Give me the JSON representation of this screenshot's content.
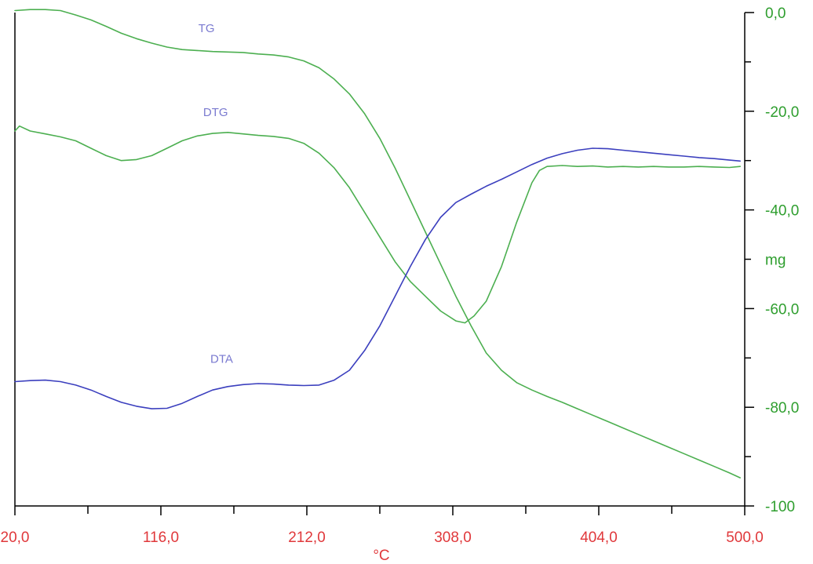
{
  "chart_data": {
    "type": "line",
    "xlabel": "°C",
    "ylabel": "mg",
    "xlim": [
      20,
      500
    ],
    "ylim": [
      -100,
      0
    ],
    "x_tick_labels": [
      "20,0",
      "116,0",
      "212,0",
      "308,0",
      "404,0",
      "500,0"
    ],
    "y_tick_labels": [
      "0,0",
      "-20,0",
      "-40,0",
      "-60,0",
      "-80,0",
      "-100"
    ],
    "grid": false,
    "legend": "none",
    "series": [
      {
        "name": "TG",
        "color": "#4caf50",
        "x": [
          20,
          30,
          40,
          50,
          60,
          70,
          80,
          90,
          100,
          110,
          120,
          130,
          140,
          150,
          160,
          170,
          180,
          190,
          200,
          210,
          220,
          230,
          240,
          250,
          260,
          270,
          280,
          290,
          300,
          310,
          320,
          330,
          340,
          350,
          360,
          370,
          380,
          390,
          400,
          410,
          420,
          430,
          440,
          450,
          460,
          470,
          480,
          490,
          497
        ],
        "y": [
          0.4,
          0.6,
          0.6,
          0.4,
          -0.5,
          -1.5,
          -2.8,
          -4.2,
          -5.3,
          -6.2,
          -7,
          -7.5,
          -7.7,
          -7.9,
          -8,
          -8.1,
          -8.4,
          -8.6,
          -9,
          -9.8,
          -11.2,
          -13.5,
          -16.5,
          -20.5,
          -25.5,
          -31.5,
          -38,
          -44.5,
          -51,
          -57.5,
          -63.5,
          -69,
          -72.5,
          -75,
          -76.5,
          -77.8,
          -79,
          -80.3,
          -81.6,
          -82.9,
          -84.2,
          -85.5,
          -86.8,
          -88.1,
          -89.4,
          -90.7,
          -92,
          -93.3,
          -94.3
        ]
      },
      {
        "name": "DTG",
        "color": "#4caf50",
        "x": [
          20,
          23,
          30,
          40,
          50,
          60,
          70,
          80,
          90,
          100,
          110,
          120,
          130,
          140,
          150,
          160,
          170,
          180,
          190,
          200,
          210,
          220,
          230,
          240,
          250,
          260,
          270,
          280,
          290,
          300,
          310,
          316,
          322,
          330,
          340,
          350,
          360,
          365,
          370,
          380,
          390,
          400,
          410,
          420,
          430,
          440,
          450,
          460,
          470,
          480,
          490,
          497
        ],
        "y": [
          -24,
          -23,
          -24,
          -24.6,
          -25.2,
          -26,
          -27.5,
          -29,
          -30,
          -29.8,
          -29,
          -27.5,
          -26,
          -25,
          -24.5,
          -24.3,
          -24.6,
          -24.9,
          -25.1,
          -25.5,
          -26.5,
          -28.5,
          -31.5,
          -35.5,
          -40.5,
          -45.5,
          -50.5,
          -54.5,
          -57.5,
          -60.5,
          -62.5,
          -62.9,
          -61.5,
          -58.5,
          -51.5,
          -42.5,
          -34.5,
          -32,
          -31.2,
          -31,
          -31.2,
          -31.1,
          -31.3,
          -31.2,
          -31.3,
          -31.2,
          -31.3,
          -31.3,
          -31.2,
          -31.3,
          -31.4,
          -31.2
        ]
      },
      {
        "name": "DTA",
        "color": "#3b3fbe",
        "x": [
          20,
          30,
          40,
          50,
          60,
          70,
          80,
          90,
          100,
          110,
          120,
          130,
          140,
          150,
          160,
          170,
          180,
          190,
          200,
          210,
          220,
          230,
          240,
          250,
          260,
          270,
          280,
          290,
          300,
          310,
          320,
          330,
          340,
          350,
          360,
          370,
          380,
          390,
          400,
          410,
          420,
          430,
          440,
          450,
          460,
          470,
          480,
          490,
          497
        ],
        "y": [
          -74.8,
          -74.6,
          -74.5,
          -74.8,
          -75.5,
          -76.5,
          -77.8,
          -79,
          -79.8,
          -80.3,
          -80.2,
          -79.2,
          -77.8,
          -76.5,
          -75.8,
          -75.4,
          -75.2,
          -75.3,
          -75.5,
          -75.6,
          -75.5,
          -74.5,
          -72.5,
          -68.5,
          -63.5,
          -57.5,
          -51.5,
          -46,
          -41.5,
          -38.5,
          -36.8,
          -35.2,
          -33.8,
          -32.3,
          -30.8,
          -29.5,
          -28.6,
          -27.9,
          -27.5,
          -27.6,
          -27.9,
          -28.2,
          -28.5,
          -28.8,
          -29.1,
          -29.4,
          -29.6,
          -29.9,
          -30.1
        ]
      }
    ]
  }
}
